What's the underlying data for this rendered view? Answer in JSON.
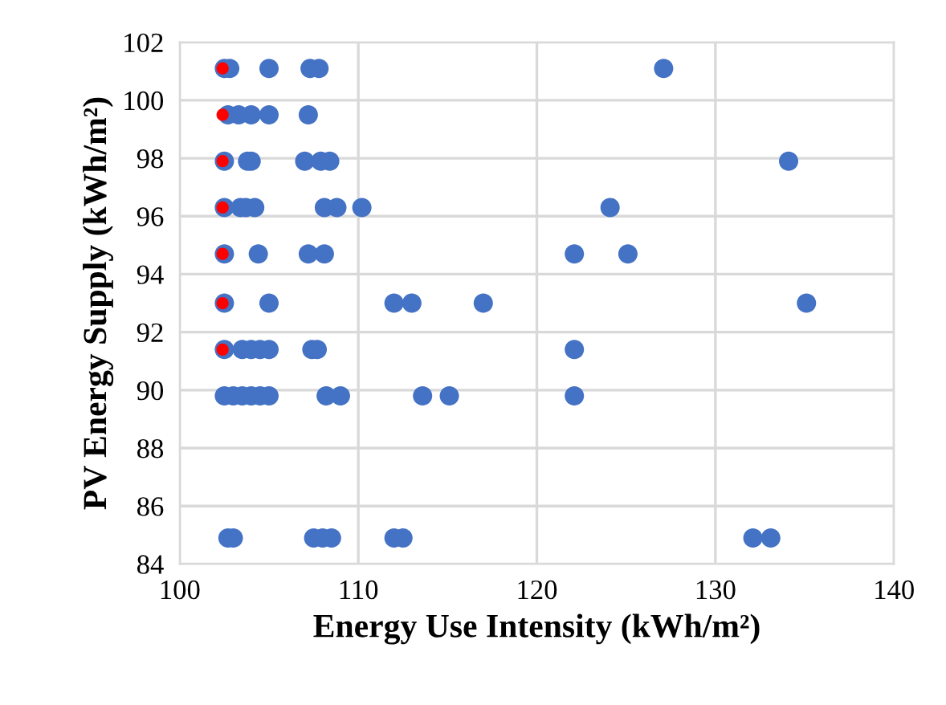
{
  "chart_data": {
    "type": "scatter",
    "xlabel": "Energy Use Intensity (kWh/m²)",
    "ylabel": "PV Energy Supply (kWh/m²)",
    "xlim": [
      100,
      140
    ],
    "ylim": [
      84,
      102
    ],
    "xticks": [
      100,
      110,
      120,
      130,
      140
    ],
    "yticks": [
      84,
      86,
      88,
      90,
      92,
      94,
      96,
      98,
      100,
      102
    ],
    "grid": true,
    "marker": "circle",
    "series": [
      {
        "color": "#4472c4",
        "x": [
          102.5,
          102.8,
          105.0,
          107.3,
          107.8,
          127.1,
          102.7,
          103.3,
          104.0,
          105.0,
          107.2,
          102.5,
          103.8,
          104.0,
          107.0,
          107.9,
          108.4,
          134.1,
          102.5,
          103.4,
          103.7,
          104.2,
          108.1,
          108.8,
          110.2,
          124.1,
          102.5,
          104.4,
          107.2,
          108.1,
          122.1,
          125.1,
          102.5,
          105.0,
          112.0,
          113.0,
          117.0,
          135.1,
          102.5,
          103.5,
          104.0,
          104.5,
          105.0,
          107.4,
          107.7,
          122.1,
          102.5,
          103.0,
          103.5,
          104.0,
          104.5,
          105.0,
          108.2,
          109.0,
          113.6,
          115.1,
          122.1,
          102.7,
          103.0,
          107.5,
          108.0,
          108.5,
          112.0,
          112.5,
          132.1,
          133.1
        ],
        "values": [
          101.1,
          101.1,
          101.1,
          101.1,
          101.1,
          101.1,
          99.5,
          99.5,
          99.5,
          99.5,
          99.5,
          97.9,
          97.9,
          97.9,
          97.9,
          97.9,
          97.9,
          97.9,
          96.3,
          96.3,
          96.3,
          96.3,
          96.3,
          96.3,
          96.3,
          96.3,
          94.7,
          94.7,
          94.7,
          94.7,
          94.7,
          94.7,
          93.0,
          93.0,
          93.0,
          93.0,
          93.0,
          93.0,
          91.4,
          91.4,
          91.4,
          91.4,
          91.4,
          91.4,
          91.4,
          91.4,
          89.8,
          89.8,
          89.8,
          89.8,
          89.8,
          89.8,
          89.8,
          89.8,
          89.8,
          89.8,
          89.8,
          84.9,
          84.9,
          84.9,
          84.9,
          84.9,
          84.9,
          84.9,
          84.9,
          84.9
        ]
      },
      {
        "color": "#ff0000",
        "x": [
          102.4,
          102.4,
          102.4,
          102.4,
          102.4,
          102.4,
          102.4
        ],
        "values": [
          101.1,
          99.5,
          97.9,
          96.3,
          94.7,
          93.0,
          91.4
        ]
      }
    ]
  }
}
